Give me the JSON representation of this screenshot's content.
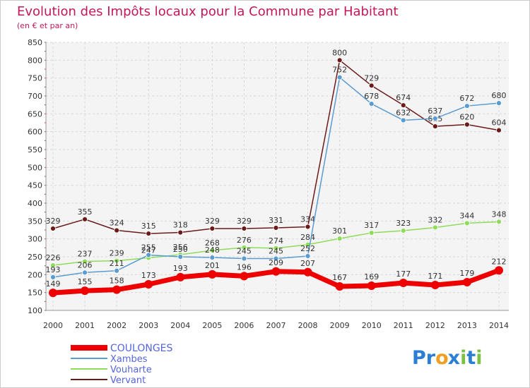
{
  "chart_data": {
    "type": "line",
    "title": "Evolution des Impôts locaux pour la Commune par Habitant",
    "subtitle": "(en € et par an)",
    "xlabel": "",
    "ylabel": "",
    "ylim": [
      100,
      850
    ],
    "yticks": [
      100,
      150,
      200,
      250,
      300,
      350,
      400,
      450,
      500,
      550,
      600,
      650,
      700,
      750,
      800,
      850
    ],
    "x": [
      "2000",
      "2001",
      "2002",
      "2003",
      "2004",
      "2005",
      "2006",
      "2007",
      "2008",
      "2009",
      "2010",
      "2011",
      "2012",
      "2013",
      "2014"
    ],
    "grid": true,
    "legend_position": "bottom-left",
    "series": [
      {
        "name": "Vervant",
        "color": "#6b1a1a",
        "values": [
          329,
          355,
          324,
          315,
          318,
          329,
          329,
          331,
          334,
          800,
          729,
          674,
          615,
          620,
          604
        ]
      },
      {
        "name": "Vouharte",
        "color": "#8fdc5a",
        "values": [
          226,
          237,
          239,
          247,
          256,
          268,
          276,
          274,
          284,
          301,
          317,
          323,
          332,
          344,
          348
        ]
      },
      {
        "name": "Xambes",
        "color": "#5a9bd0",
        "values": [
          193,
          206,
          211,
          255,
          250,
          248,
          245,
          245,
          252,
          752,
          678,
          632,
          637,
          672,
          680
        ]
      },
      {
        "name": "COULONGES",
        "color": "#ee0000",
        "values": [
          149,
          155,
          158,
          173,
          193,
          201,
          196,
          209,
          207,
          167,
          169,
          177,
          171,
          179,
          212
        ]
      }
    ],
    "legend": [
      "COULONGES",
      "Xambes",
      "Vouharte",
      "Vervant"
    ]
  },
  "logo": {
    "text": "Proxiti"
  }
}
